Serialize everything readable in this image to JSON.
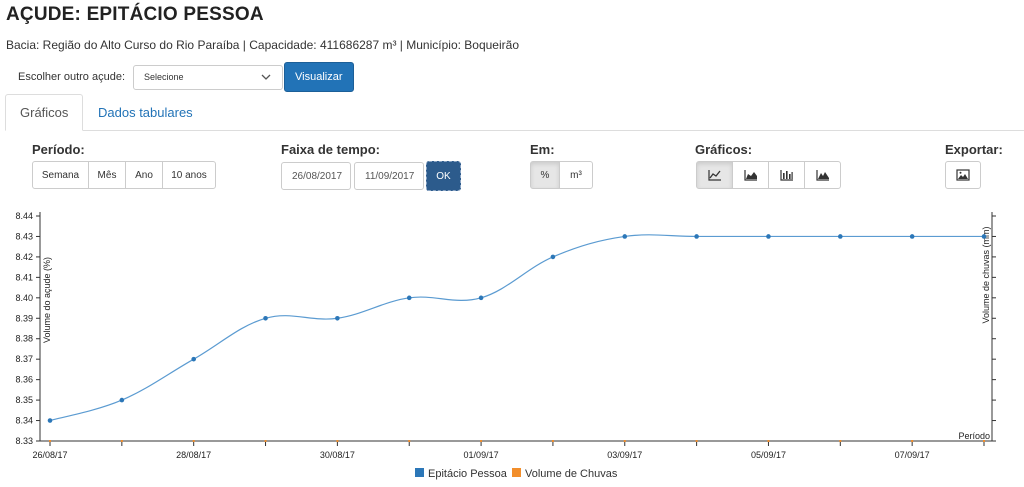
{
  "header": {
    "title": "AÇUDE: EPITÁCIO PESSOA",
    "subtitle": "Bacia: Região do Alto Curso do Rio Paraíba | Capacidade: 411686287 m³ | Município: Boqueirão"
  },
  "picker": {
    "label": "Escolher outro açude:",
    "select_value": "Selecione",
    "button_label": "Visualizar"
  },
  "tabs": [
    {
      "label": "Gráficos",
      "active": true
    },
    {
      "label": "Dados tabulares",
      "active": false
    }
  ],
  "controls": {
    "period_label": "Período:",
    "period_buttons": [
      "Semana",
      "Mês",
      "Ano",
      "10 anos"
    ],
    "range_label": "Faixa de tempo:",
    "date_from": "26/08/2017",
    "date_to": "11/09/2017",
    "ok_label": "OK",
    "unit_label": "Em:",
    "unit_buttons": [
      "%",
      "m³"
    ],
    "unit_selected": "%",
    "charts_label": "Gráficos:",
    "chart_buttons": [
      "line-chart-icon",
      "area-chart-icon",
      "bar-chart-icon",
      "mountain-chart-icon"
    ],
    "export_label": "Exportar:",
    "export_icon": "image-icon"
  },
  "chart_data": {
    "type": "line",
    "ylabel": "Volume do açude (%)",
    "ylabel_right": "Volume de chuvas (mm)",
    "xlabel": "Período",
    "ylim": [
      8.33,
      8.44
    ],
    "yticks": [
      "8.33",
      "8.34",
      "8.35",
      "8.36",
      "8.37",
      "8.38",
      "8.39",
      "8.40",
      "8.41",
      "8.42",
      "8.43",
      "8.44"
    ],
    "x": [
      "26/08/17",
      "27/08/17",
      "28/08/17",
      "29/08/17",
      "30/08/17",
      "31/08/17",
      "01/09/17",
      "02/09/17",
      "03/09/17",
      "04/09/17",
      "05/09/17",
      "06/09/17",
      "07/09/17",
      "08/09/17"
    ],
    "xtick_labels": [
      "26/08/17",
      "",
      "28/08/17",
      "",
      "30/08/17",
      "",
      "01/09/17",
      "",
      "03/09/17",
      "",
      "05/09/17",
      "",
      "07/09/17",
      ""
    ],
    "series": [
      {
        "name": "Epitácio Pessoa",
        "color": "#2c77b8",
        "line_color": "#5b9bd1",
        "values": [
          8.34,
          8.35,
          8.37,
          8.39,
          8.39,
          8.4,
          8.4,
          8.42,
          8.43,
          8.43,
          8.43,
          8.43,
          8.43,
          8.43
        ]
      },
      {
        "name": "Volume de Chuvas",
        "color": "#f28e2b",
        "values": [
          0,
          0,
          0,
          0,
          0,
          0,
          0,
          0,
          0,
          0,
          0,
          0,
          0,
          0
        ]
      }
    ],
    "legend_position": "bottom"
  }
}
